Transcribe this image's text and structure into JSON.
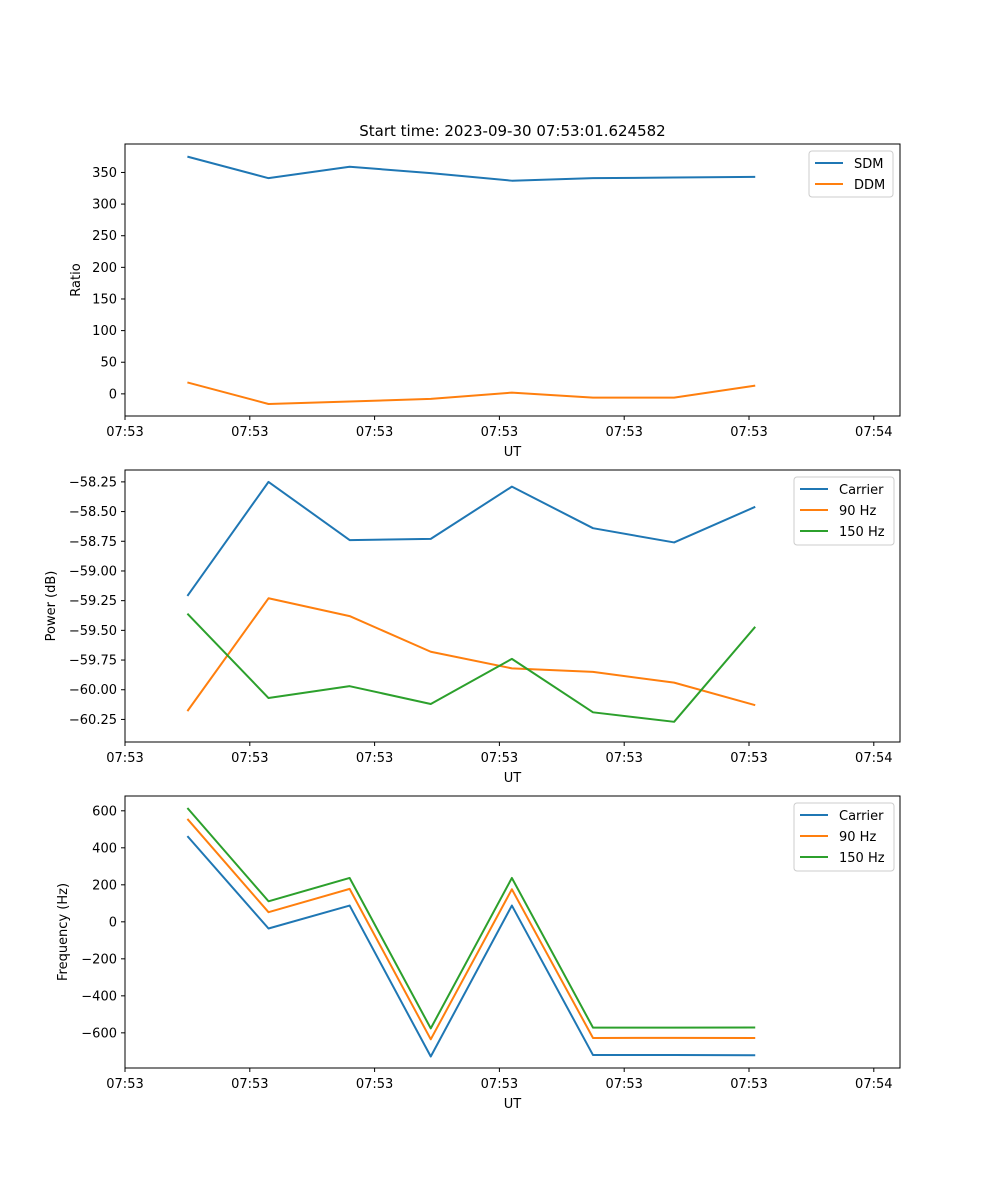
{
  "chart_data": [
    {
      "type": "line",
      "title": "Start time: 2023-09-30 07:53:01.624582",
      "xlabel": "UT",
      "ylabel": "Ratio",
      "xlim": [
        0,
        6.21
      ],
      "ylim": [
        -35,
        395
      ],
      "x": [
        0.5,
        1.15,
        1.8,
        2.45,
        3.1,
        3.75,
        4.4,
        5.05
      ],
      "xticks": [
        0,
        1,
        2,
        3,
        4,
        5,
        6
      ],
      "xtick_labels": [
        "07:53",
        "07:53",
        "07:53",
        "07:53",
        "07:53",
        "07:53",
        "07:54"
      ],
      "yticks": [
        0,
        50,
        100,
        150,
        200,
        250,
        300,
        350
      ],
      "ytick_labels": [
        "0",
        "50",
        "100",
        "150",
        "200",
        "250",
        "300",
        "350"
      ],
      "legend_position": "top-right",
      "series": [
        {
          "name": "SDM",
          "color": "#1f77b4",
          "values": [
            375,
            341,
            359,
            349,
            337,
            341,
            342,
            343
          ]
        },
        {
          "name": "DDM",
          "color": "#ff7f0e",
          "values": [
            18,
            -16,
            -12,
            -8,
            2,
            -6,
            -6,
            13
          ]
        }
      ]
    },
    {
      "type": "line",
      "title": "",
      "xlabel": "UT",
      "ylabel": "Power (dB)",
      "xlim": [
        0,
        6.21
      ],
      "ylim": [
        -60.44,
        -58.15
      ],
      "x": [
        0.5,
        1.15,
        1.8,
        2.45,
        3.1,
        3.75,
        4.4,
        5.05
      ],
      "xticks": [
        0,
        1,
        2,
        3,
        4,
        5,
        6
      ],
      "xtick_labels": [
        "07:53",
        "07:53",
        "07:53",
        "07:53",
        "07:53",
        "07:53",
        "07:54"
      ],
      "yticks": [
        -60.25,
        -60.0,
        -59.75,
        -59.5,
        -59.25,
        -59.0,
        -58.75,
        -58.5,
        -58.25
      ],
      "ytick_labels": [
        "−60.25",
        "−60.00",
        "−59.75",
        "−59.50",
        "−59.25",
        "−59.00",
        "−58.75",
        "−58.50",
        "−58.25"
      ],
      "legend_position": "top-right",
      "series": [
        {
          "name": "Carrier",
          "color": "#1f77b4",
          "values": [
            -59.21,
            -58.25,
            -58.74,
            -58.73,
            -58.29,
            -58.64,
            -58.76,
            -58.46
          ]
        },
        {
          "name": "90 Hz",
          "color": "#ff7f0e",
          "values": [
            -60.18,
            -59.23,
            -59.38,
            -59.68,
            -59.82,
            -59.85,
            -59.94,
            -60.13
          ]
        },
        {
          "name": "150 Hz",
          "color": "#2ca02c",
          "values": [
            -59.36,
            -60.07,
            -59.97,
            -60.12,
            -59.74,
            -60.19,
            -60.27,
            -59.47
          ]
        }
      ]
    },
    {
      "type": "line",
      "title": "",
      "xlabel": "UT",
      "ylabel": "Frequency (Hz)",
      "xlim": [
        0,
        6.21
      ],
      "ylim": [
        -790,
        680
      ],
      "x": [
        0.5,
        1.15,
        1.8,
        2.45,
        3.1,
        3.75,
        4.4,
        5.05
      ],
      "xticks": [
        0,
        1,
        2,
        3,
        4,
        5,
        6
      ],
      "xtick_labels": [
        "07:53",
        "07:53",
        "07:53",
        "07:53",
        "07:53",
        "07:53",
        "07:54"
      ],
      "yticks": [
        -600,
        -400,
        -200,
        0,
        200,
        400,
        600
      ],
      "ytick_labels": [
        "−600",
        "−400",
        "−200",
        "0",
        "200",
        "400",
        "600"
      ],
      "legend_position": "top-right",
      "series": [
        {
          "name": "Carrier",
          "color": "#1f77b4",
          "values": [
            463,
            -36,
            88,
            -728,
            88,
            -720,
            -720,
            -721
          ]
        },
        {
          "name": "90 Hz",
          "color": "#ff7f0e",
          "values": [
            556,
            52,
            178,
            -635,
            176,
            -628,
            -627,
            -628
          ]
        },
        {
          "name": "150 Hz",
          "color": "#2ca02c",
          "values": [
            615,
            111,
            237,
            -576,
            237,
            -572,
            -572,
            -571
          ]
        }
      ]
    }
  ]
}
